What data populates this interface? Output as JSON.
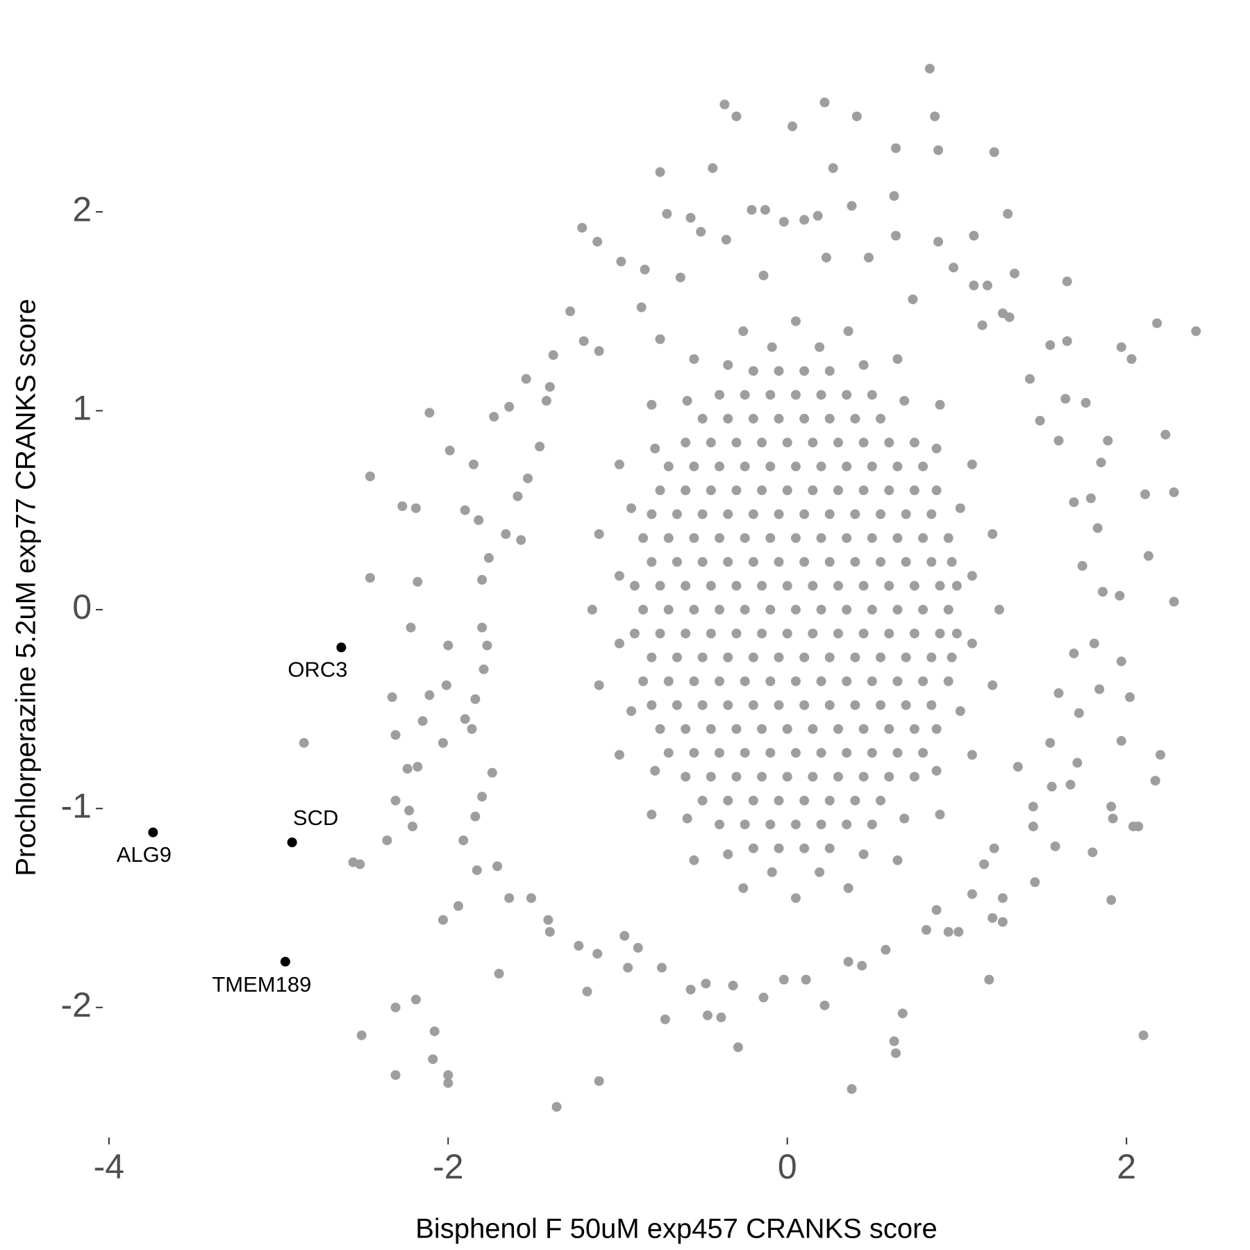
{
  "chart_data": {
    "type": "scatter",
    "x_label": "Bisphenol F 50uM exp457 CRANKS score",
    "y_label": "Prochlorperazine 5.2uM exp77 CRANKS score",
    "color": "#9e9e9e",
    "grid": false,
    "xlim": [
      -4.14,
      2.56
    ],
    "ylim": [
      -2.62,
      2.82
    ],
    "xticks": [
      -4,
      -2,
      0,
      2
    ],
    "yticks": [
      -2,
      -1,
      0,
      1,
      2
    ],
    "x": [
      0.84,
      -0.37,
      -0.3,
      0.22,
      0.41,
      0.87,
      0.03,
      0.64,
      0.89,
      1.22,
      -0.44,
      -0.75,
      0.27,
      0.63,
      0.38,
      1.3,
      -0.71,
      -1.21,
      1.1,
      -1.12,
      0.89,
      0.64,
      2.18,
      2.41,
      1.97,
      2.03,
      2.23,
      2.28,
      2.11,
      2.13,
      2.28,
      1.96,
      1.97,
      2.02,
      1.97,
      2.2,
      2.17,
      1.91,
      1.92,
      2.04,
      2.07,
      1.8,
      1.91,
      2.1,
      1.19,
      0.38,
      0.63,
      0.64,
      0.68,
      0.22,
      -0.29,
      -0.39,
      -0.47,
      -0.72,
      -1.11,
      -1.36,
      -2.0,
      -2.0,
      -2.09,
      -2.08,
      -2.31,
      -2.31,
      -2.19,
      -2.51,
      -2.03,
      -1.94,
      -1.7,
      -1.18,
      -2.36,
      -2.56,
      -2.52,
      -2.21,
      -2.23,
      -2.31,
      -2.24,
      -2.18,
      -2.31,
      -2.33,
      -2.85,
      -2.11,
      -2.15,
      -2.03,
      -2.01,
      -2.22,
      -2.0,
      -2.18,
      -2.46,
      -2.46,
      -2.27,
      -2.19,
      -2.11,
      -1.99,
      -1.85,
      -1.9,
      -1.82,
      -1.73,
      -1.64,
      -1.54,
      -1.38,
      -1.28,
      -1.2,
      -0.98,
      -0.84,
      -0.57,
      -0.51,
      -0.21,
      -0.13,
      -0.02,
      0.1,
      0.18,
      1.1,
      1.18,
      1.34,
      1.65,
      1.65,
      1.55,
      1.64,
      1.76,
      1.89,
      1.85,
      1.79,
      1.83,
      1.86,
      1.81,
      1.84,
      1.72,
      1.71,
      1.67,
      1.56,
      1.45,
      1.58,
      1.45,
      1.46,
      1.27,
      1.21,
      1.27,
      1.01,
      0.95,
      0.82,
      0.88,
      1.09,
      1.16,
      0.36,
      0.58,
      0.44,
      0.11,
      -0.02,
      -0.14,
      -0.32,
      -0.48,
      -0.57,
      -0.74,
      -0.94,
      -0.88,
      -0.96,
      -1.12,
      -1.23,
      -1.4,
      -1.41,
      -1.51,
      -1.64,
      -1.71,
      -1.83,
      -1.91,
      -1.84,
      -1.8,
      -1.74,
      -1.86,
      -1.9,
      -1.84,
      -1.79,
      -1.77,
      -1.8,
      -1.8,
      -1.76,
      -1.66,
      -1.57,
      -1.59,
      -1.53,
      -1.46,
      -1.42,
      -1.4,
      -1.11,
      -0.75,
      -0.86,
      -0.63,
      -0.36,
      -0.14,
      0.23,
      0.48,
      0.74,
      0.98,
      1.27,
      1.31,
      1.15,
      1.43,
      1.49,
      1.6,
      1.69,
      1.74,
      1.69,
      1.6,
      1.55,
      1.36,
      1.22,
      1.25,
      1.21,
      1.09,
      0.9,
      0.65,
      0.36,
      0.05,
      -0.26,
      -0.55,
      -0.8,
      -0.99,
      -1.11,
      -1.15,
      -1.11,
      -0.99,
      -0.8,
      -0.55,
      -0.26,
      0.05,
      0.36,
      0.65,
      0.9,
      1.09,
      1.21,
      1.09,
      1.02,
      0.88,
      0.69,
      0.45,
      0.19,
      -0.09,
      -0.35,
      -0.59,
      -0.78,
      -0.92,
      -0.99,
      -0.99,
      -0.92,
      -0.78,
      -0.59,
      -0.35,
      -0.09,
      0.19,
      0.45,
      0.69,
      0.88,
      1.02,
      1.09,
      -0.2,
      -0.05,
      0.1,
      0.25,
      -0.4,
      -0.25,
      -0.1,
      0.05,
      0.2,
      0.35,
      0.5,
      -0.5,
      -0.35,
      -0.2,
      -0.05,
      0.1,
      0.25,
      0.4,
      0.55,
      -0.6,
      -0.45,
      -0.3,
      -0.15,
      0,
      0.15,
      0.3,
      0.45,
      0.6,
      0.75,
      -0.7,
      -0.55,
      -0.4,
      -0.25,
      -0.1,
      0.05,
      0.2,
      0.35,
      0.5,
      0.65,
      0.8,
      -0.75,
      -0.6,
      -0.45,
      -0.3,
      -0.15,
      0,
      0.15,
      0.3,
      0.45,
      0.6,
      0.75,
      0.88,
      -0.8,
      -0.65,
      -0.5,
      -0.35,
      -0.2,
      -0.05,
      0.1,
      0.25,
      0.4,
      0.55,
      0.7,
      0.85,
      -0.85,
      -0.7,
      -0.55,
      -0.4,
      -0.25,
      -0.1,
      0.05,
      0.2,
      0.35,
      0.5,
      0.65,
      0.8,
      0.95,
      -0.8,
      -0.65,
      -0.5,
      -0.35,
      -0.2,
      -0.05,
      0.1,
      0.25,
      0.4,
      0.55,
      0.7,
      0.85,
      0.97,
      -0.9,
      -0.75,
      -0.6,
      -0.45,
      -0.3,
      -0.15,
      0,
      0.15,
      0.3,
      0.45,
      0.6,
      0.75,
      0.9,
      1.0,
      -0.85,
      -0.7,
      -0.55,
      -0.4,
      -0.25,
      -0.1,
      0.05,
      0.2,
      0.35,
      0.5,
      0.65,
      0.8,
      0.95,
      -0.9,
      -0.75,
      -0.6,
      -0.45,
      -0.3,
      -0.15,
      0,
      0.15,
      0.3,
      0.45,
      0.6,
      0.75,
      0.9,
      1.0,
      -0.8,
      -0.65,
      -0.5,
      -0.35,
      -0.2,
      -0.05,
      0.1,
      0.25,
      0.4,
      0.55,
      0.7,
      0.85,
      0.97,
      -0.85,
      -0.7,
      -0.55,
      -0.4,
      -0.25,
      -0.1,
      0.05,
      0.2,
      0.35,
      0.5,
      0.65,
      0.8,
      0.95,
      -0.8,
      -0.65,
      -0.5,
      -0.35,
      -0.2,
      -0.05,
      0.1,
      0.25,
      0.4,
      0.55,
      0.7,
      0.85,
      -0.75,
      -0.6,
      -0.45,
      -0.3,
      -0.15,
      0,
      0.15,
      0.3,
      0.45,
      0.6,
      0.75,
      0.88,
      -0.7,
      -0.55,
      -0.4,
      -0.25,
      -0.1,
      0.05,
      0.2,
      0.35,
      0.5,
      0.65,
      0.8,
      -0.6,
      -0.45,
      -0.3,
      -0.15,
      0,
      0.15,
      0.3,
      0.45,
      0.6,
      0.75,
      -0.5,
      -0.35,
      -0.2,
      -0.05,
      0.1,
      0.25,
      0.4,
      0.55,
      -0.4,
      -0.25,
      -0.1,
      0.05,
      0.2,
      0.35,
      0.5,
      -0.2,
      -0.05,
      0.1,
      0.25
    ],
    "y": [
      2.72,
      2.54,
      2.48,
      2.55,
      2.48,
      2.48,
      2.43,
      2.32,
      2.31,
      2.3,
      2.22,
      2.2,
      2.22,
      2.08,
      2.03,
      1.99,
      1.99,
      1.92,
      1.88,
      1.85,
      1.85,
      1.88,
      1.44,
      1.4,
      1.32,
      1.26,
      0.88,
      0.59,
      0.58,
      0.27,
      0.04,
      0.07,
      -0.26,
      -0.44,
      -0.66,
      -0.73,
      -0.86,
      -0.99,
      -1.05,
      -1.09,
      -1.09,
      -1.22,
      -1.46,
      -2.14,
      -1.86,
      -2.41,
      -2.17,
      -2.23,
      -2.03,
      -1.99,
      -2.2,
      -2.05,
      -2.04,
      -2.06,
      -2.37,
      -2.5,
      -2.34,
      -2.38,
      -2.26,
      -2.12,
      -2.34,
      -2.0,
      -1.96,
      -2.14,
      -1.56,
      -1.49,
      -1.83,
      -1.92,
      -1.16,
      -1.27,
      -1.28,
      -1.09,
      -1.01,
      -0.96,
      -0.8,
      -0.79,
      -0.63,
      -0.44,
      -0.67,
      -0.43,
      -0.56,
      -0.67,
      -0.38,
      -0.09,
      -0.18,
      0.14,
      0.16,
      0.67,
      0.52,
      0.51,
      0.99,
      0.8,
      0.73,
      0.5,
      0.45,
      0.97,
      1.02,
      1.16,
      1.28,
      1.5,
      1.35,
      1.75,
      1.71,
      1.97,
      1.9,
      2.01,
      2.01,
      1.95,
      1.96,
      1.98,
      1.63,
      1.63,
      1.69,
      1.65,
      1.35,
      1.33,
      1.06,
      1.04,
      0.85,
      0.74,
      0.56,
      0.41,
      0.09,
      -0.17,
      -0.4,
      -0.52,
      -0.77,
      -0.88,
      -0.89,
      -1.09,
      -1.19,
      -0.99,
      -1.37,
      -1.45,
      -1.55,
      -1.57,
      -1.62,
      -1.62,
      -1.61,
      -1.51,
      -1.43,
      -1.28,
      -1.77,
      -1.71,
      -1.79,
      -1.86,
      -1.86,
      -1.95,
      -1.89,
      -1.88,
      -1.91,
      -1.8,
      -1.8,
      -1.7,
      -1.64,
      -1.73,
      -1.69,
      -1.62,
      -1.56,
      -1.45,
      -1.45,
      -1.29,
      -1.31,
      -1.16,
      -1.04,
      -0.94,
      -0.82,
      -0.6,
      -0.55,
      -0.45,
      -0.3,
      -0.18,
      -0.09,
      0.15,
      0.26,
      0.38,
      0.35,
      0.57,
      0.66,
      0.82,
      1.05,
      1.12,
      1.3,
      1.36,
      1.52,
      1.67,
      1.86,
      1.68,
      1.77,
      1.77,
      1.56,
      1.72,
      1.49,
      1.47,
      1.43,
      1.16,
      0.95,
      0.85,
      0.54,
      0.22,
      -0.22,
      -0.42,
      -0.67,
      -0.79,
      -1.2,
      0,
      0.38,
      0.73,
      1.03,
      1.26,
      1.4,
      1.45,
      1.4,
      1.26,
      1.03,
      0.73,
      0.38,
      0,
      -0.38,
      -0.73,
      -1.03,
      -1.26,
      -1.4,
      -1.45,
      -1.4,
      -1.26,
      -1.03,
      -0.73,
      -0.38,
      0.17,
      0.51,
      0.81,
      1.05,
      1.23,
      1.32,
      1.32,
      1.23,
      1.05,
      0.81,
      0.51,
      0.17,
      -0.17,
      -0.51,
      -0.81,
      -1.05,
      -1.23,
      -1.32,
      -1.32,
      -1.23,
      -1.05,
      -0.81,
      -0.51,
      -0.17,
      1.2,
      1.2,
      1.2,
      1.2,
      1.08,
      1.08,
      1.08,
      1.08,
      1.08,
      1.08,
      1.08,
      0.96,
      0.96,
      0.96,
      0.96,
      0.96,
      0.96,
      0.96,
      0.96,
      0.84,
      0.84,
      0.84,
      0.84,
      0.84,
      0.84,
      0.84,
      0.84,
      0.84,
      0.84,
      0.72,
      0.72,
      0.72,
      0.72,
      0.72,
      0.72,
      0.72,
      0.72,
      0.72,
      0.72,
      0.72,
      0.6,
      0.6,
      0.6,
      0.6,
      0.6,
      0.6,
      0.6,
      0.6,
      0.6,
      0.6,
      0.6,
      0.6,
      0.48,
      0.48,
      0.48,
      0.48,
      0.48,
      0.48,
      0.48,
      0.48,
      0.48,
      0.48,
      0.48,
      0.48,
      0.36,
      0.36,
      0.36,
      0.36,
      0.36,
      0.36,
      0.36,
      0.36,
      0.36,
      0.36,
      0.36,
      0.36,
      0.36,
      0.24,
      0.24,
      0.24,
      0.24,
      0.24,
      0.24,
      0.24,
      0.24,
      0.24,
      0.24,
      0.24,
      0.24,
      0.24,
      0.12,
      0.12,
      0.12,
      0.12,
      0.12,
      0.12,
      0.12,
      0.12,
      0.12,
      0.12,
      0.12,
      0.12,
      0.12,
      0.12,
      0,
      0,
      0,
      0,
      0,
      0,
      0,
      0,
      0,
      0,
      0,
      0,
      0,
      -0.12,
      -0.12,
      -0.12,
      -0.12,
      -0.12,
      -0.12,
      -0.12,
      -0.12,
      -0.12,
      -0.12,
      -0.12,
      -0.12,
      -0.12,
      -0.12,
      -0.24,
      -0.24,
      -0.24,
      -0.24,
      -0.24,
      -0.24,
      -0.24,
      -0.24,
      -0.24,
      -0.24,
      -0.24,
      -0.24,
      -0.24,
      -0.36,
      -0.36,
      -0.36,
      -0.36,
      -0.36,
      -0.36,
      -0.36,
      -0.36,
      -0.36,
      -0.36,
      -0.36,
      -0.36,
      -0.36,
      -0.48,
      -0.48,
      -0.48,
      -0.48,
      -0.48,
      -0.48,
      -0.48,
      -0.48,
      -0.48,
      -0.48,
      -0.48,
      -0.48,
      -0.6,
      -0.6,
      -0.6,
      -0.6,
      -0.6,
      -0.6,
      -0.6,
      -0.6,
      -0.6,
      -0.6,
      -0.6,
      -0.6,
      -0.72,
      -0.72,
      -0.72,
      -0.72,
      -0.72,
      -0.72,
      -0.72,
      -0.72,
      -0.72,
      -0.72,
      -0.72,
      -0.84,
      -0.84,
      -0.84,
      -0.84,
      -0.84,
      -0.84,
      -0.84,
      -0.84,
      -0.84,
      -0.84,
      -0.96,
      -0.96,
      -0.96,
      -0.96,
      -0.96,
      -0.96,
      -0.96,
      -0.96,
      -1.08,
      -1.08,
      -1.08,
      -1.08,
      -1.08,
      -1.08,
      -1.08,
      -1.2,
      -1.2,
      -1.2,
      -1.2
    ],
    "highlight": {
      "color": "#000000",
      "labels": [
        "ALG9",
        "SCD",
        "ORC3",
        "TMEM189"
      ],
      "x": [
        -3.74,
        -2.92,
        -2.63,
        -2.96
      ],
      "y": [
        -1.12,
        -1.17,
        -0.19,
        -1.77
      ]
    }
  }
}
